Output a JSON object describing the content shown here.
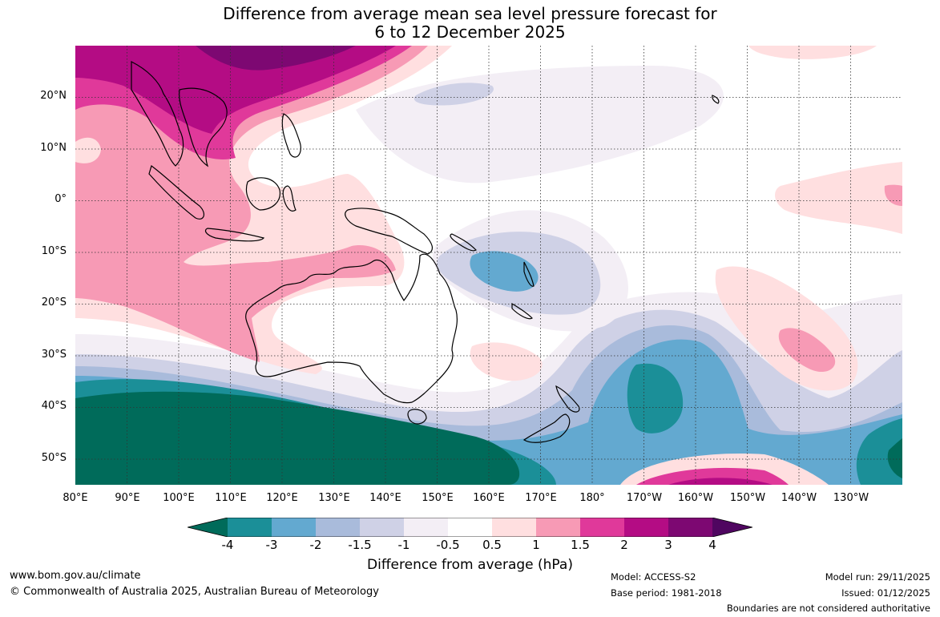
{
  "title_line1": "Difference from average mean sea level pressure forecast for",
  "title_line2": "6 to 12 December 2025",
  "lat_labels": [
    "20°N",
    "10°N",
    "0°",
    "10°S",
    "20°S",
    "30°S",
    "40°S",
    "50°S"
  ],
  "lon_labels": [
    "80°E",
    "90°E",
    "100°E",
    "110°E",
    "120°E",
    "130°E",
    "140°E",
    "150°E",
    "160°E",
    "170°E",
    "180°",
    "170°W",
    "160°W",
    "150°W",
    "140°W",
    "130°W"
  ],
  "colorbar": {
    "label": "Difference from average (hPa)",
    "ticks": [
      "-4",
      "-3",
      "-2",
      "-1.5",
      "-1",
      "-0.5",
      "0.5",
      "1",
      "1.5",
      "2",
      "3",
      "4"
    ],
    "colors": [
      "#006b5a",
      "#1b8f98",
      "#63a9d0",
      "#a9bbdb",
      "#cfd1e6",
      "#f3eef5",
      "#ffffff",
      "#ffdfe0",
      "#f79ab5",
      "#e0399a",
      "#b40c84",
      "#7d0872",
      "#4f0660"
    ]
  },
  "footer": {
    "website": "www.bom.gov.au/climate",
    "copyright": "© Commonwealth of Australia 2025, Australian Bureau of Meteorology",
    "model": "Model: ACCESS-S2",
    "base_period": "Base period: 1981-2018",
    "model_run": "Model run: 29/11/2025",
    "issued": "Issued: 01/12/2025",
    "disclaimer": "Boundaries are not considered authoritative"
  }
}
